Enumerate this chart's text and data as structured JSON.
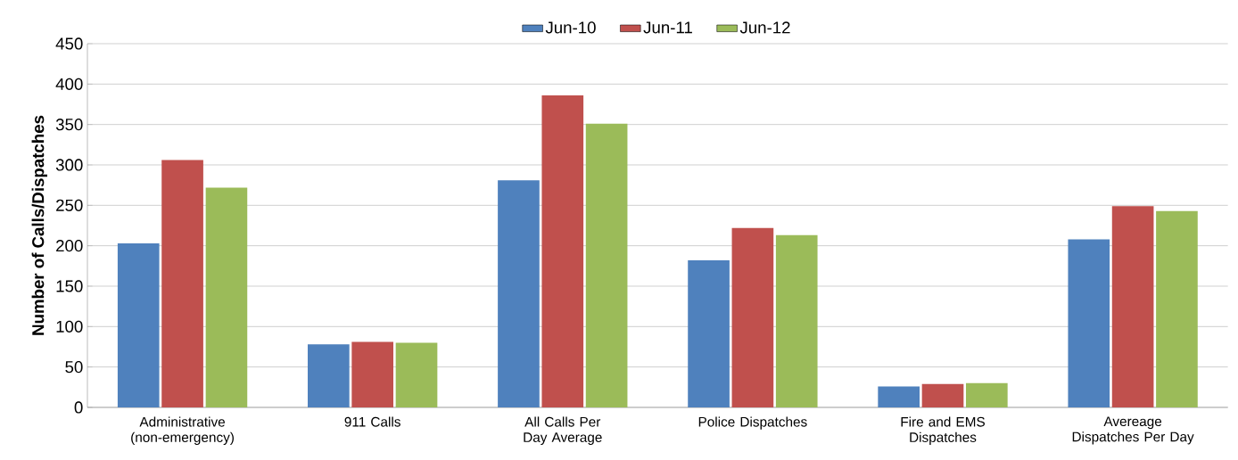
{
  "chart_data": {
    "type": "bar",
    "ylabel": "Number of Calls/Dispatches",
    "categories": [
      "Administrative (non-emergency)",
      "911 Calls",
      "All Calls Per Day Average",
      "Police Dispatches",
      "Fire and EMS Dispatches",
      "Avereage Dispatches Per Day"
    ],
    "series": [
      {
        "name": "Jun-10",
        "color": "#4f81bd",
        "values": [
          203,
          78,
          281,
          182,
          26,
          208
        ]
      },
      {
        "name": "Jun-11",
        "color": "#c0504d",
        "values": [
          306,
          81,
          386,
          222,
          29,
          249
        ]
      },
      {
        "name": "Jun-12",
        "color": "#9bbb59",
        "values": [
          272,
          80,
          351,
          213,
          30,
          243
        ]
      }
    ],
    "ylim": [
      0,
      450
    ],
    "yticks": [
      0,
      50,
      100,
      150,
      200,
      250,
      300,
      350,
      400,
      450
    ],
    "grid": "y",
    "legend": "top"
  }
}
